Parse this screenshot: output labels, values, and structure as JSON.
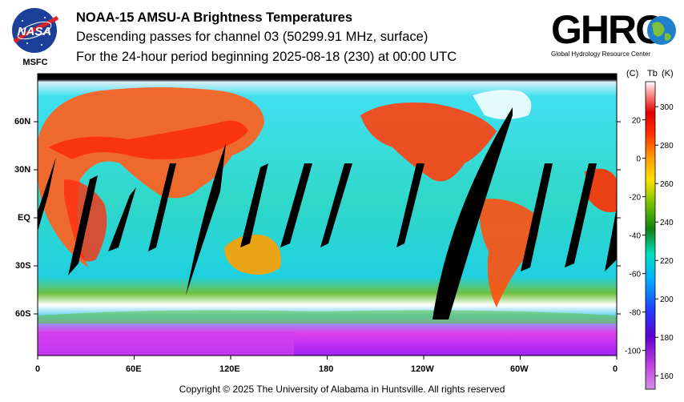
{
  "header": {
    "title": "NOAA-15 AMSU-A Brightness Temperatures",
    "subtitle": "Descending passes for channel 03 (50299.91 MHz, surface)",
    "period": "For the 24-hour period beginning 2025-08-18 (230) at 00:00 UTC"
  },
  "logos": {
    "nasa_text": "NASA",
    "msfc_text": "MSFC",
    "ghrc_text": "GHRC",
    "ghrc_tagline": "Global Hydrology Resource Center"
  },
  "map": {
    "lat_labels": [
      "60N",
      "30N",
      "EQ",
      "30S",
      "60S"
    ],
    "lon_labels": [
      "0",
      "60E",
      "120E",
      "180",
      "120W",
      "60W",
      "0"
    ]
  },
  "colorbar": {
    "header_c": "(C)",
    "header_tb": "Tb",
    "header_k": "(K)",
    "celsius_ticks": [
      "20",
      "0",
      "-20",
      "-40",
      "-60",
      "-80",
      "-100"
    ],
    "kelvin_ticks": [
      "300",
      "280",
      "260",
      "240",
      "220",
      "200",
      "180",
      "160"
    ],
    "kelvin_range": [
      153,
      313
    ],
    "colors": [
      "#d070e0",
      "#a000d0",
      "#2040ff",
      "#00c8ff",
      "#00d8a0",
      "#109010",
      "#60c000",
      "#ffe000",
      "#ff9000",
      "#ff3000",
      "#e00000",
      "#ff8080",
      "#ffffff"
    ]
  },
  "footer": {
    "copyright": "Copyright © 2025 The University of Alabama in Huntsville.  All rights reserved"
  }
}
